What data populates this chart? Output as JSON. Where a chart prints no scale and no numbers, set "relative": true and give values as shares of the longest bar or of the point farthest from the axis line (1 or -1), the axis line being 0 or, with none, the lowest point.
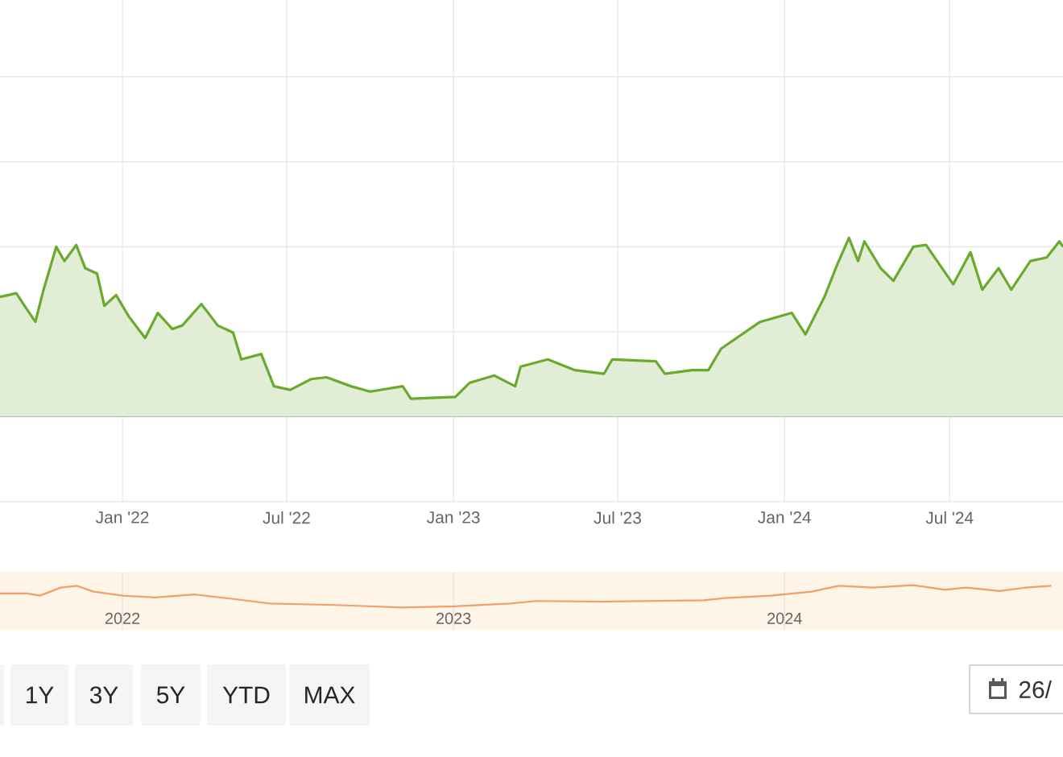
{
  "chart_data": [
    {
      "type": "area",
      "color": "#6aaa2e",
      "relative": true,
      "grid": true,
      "x": [
        "2021-08-19",
        "2021-09-06",
        "2021-09-15",
        "2021-09-27",
        "2021-10-06",
        "2021-10-20",
        "2021-10-29",
        "2021-11-11",
        "2021-11-21",
        "2021-12-04",
        "2021-12-12",
        "2021-12-25",
        "2022-01-08",
        "2022-01-26",
        "2022-02-09",
        "2022-02-25",
        "2022-03-08",
        "2022-03-29",
        "2022-04-16",
        "2022-05-03",
        "2022-05-12",
        "2022-06-03",
        "2022-06-17",
        "2022-07-05",
        "2022-07-28",
        "2022-08-14",
        "2022-09-10",
        "2022-10-01",
        "2022-11-06",
        "2022-11-15",
        "2023-01-03",
        "2023-01-19",
        "2023-02-15",
        "2023-03-10",
        "2023-03-16",
        "2023-04-15",
        "2023-05-15",
        "2023-06-16",
        "2023-06-25",
        "2023-08-12",
        "2023-08-22",
        "2023-09-21",
        "2023-10-09",
        "2023-10-23",
        "2023-12-05",
        "2024-01-09",
        "2024-01-24",
        "2024-02-14",
        "2024-02-28",
        "2024-03-12",
        "2024-03-22",
        "2024-03-29",
        "2024-04-16",
        "2024-04-30",
        "2024-05-22",
        "2024-06-05",
        "2024-07-05",
        "2024-07-24",
        "2024-08-06",
        "2024-08-24",
        "2024-09-07",
        "2024-09-28",
        "2024-10-16",
        "2024-10-30",
        "2024-11-03"
      ],
      "values": [
        0.67,
        0.69,
        0.62,
        0.53,
        0.71,
        0.95,
        0.87,
        0.96,
        0.83,
        0.8,
        0.62,
        0.68,
        0.56,
        0.44,
        0.58,
        0.49,
        0.51,
        0.63,
        0.51,
        0.47,
        0.32,
        0.35,
        0.17,
        0.15,
        0.21,
        0.22,
        0.17,
        0.14,
        0.17,
        0.1,
        0.11,
        0.19,
        0.23,
        0.17,
        0.28,
        0.32,
        0.26,
        0.24,
        0.32,
        0.31,
        0.24,
        0.26,
        0.26,
        0.38,
        0.53,
        0.58,
        0.46,
        0.67,
        0.85,
        1,
        0.87,
        0.98,
        0.83,
        0.76,
        0.95,
        0.96,
        0.74,
        0.92,
        0.71,
        0.83,
        0.71,
        0.87,
        0.89,
        0.98,
        0.95
      ],
      "xlim": [
        "2021-08-19",
        "2024-11-03"
      ],
      "xticks": [
        {
          "value": "2022-01-01",
          "label": "Jan '22"
        },
        {
          "value": "2022-07-01",
          "label": "Jul '22"
        },
        {
          "value": "2023-01-01",
          "label": "Jan '23"
        },
        {
          "value": "2023-07-01",
          "label": "Jul '23"
        },
        {
          "value": "2024-01-01",
          "label": "Jan '24"
        },
        {
          "value": "2024-07-01",
          "label": "Jul '24"
        }
      ]
    },
    {
      "type": "line",
      "color": "#f0a068",
      "relative": true,
      "grid": "x",
      "x": [
        "2021-08-19",
        "2021-09-18",
        "2021-10-02",
        "2021-10-25",
        "2021-11-12",
        "2021-11-30",
        "2022-01-01",
        "2022-02-06",
        "2022-03-22",
        "2022-05-05",
        "2022-06-12",
        "2022-08-23",
        "2022-11-06",
        "2023-01-03",
        "2023-03-05",
        "2023-04-02",
        "2023-06-16",
        "2023-10-04",
        "2023-10-27",
        "2023-12-17",
        "2024-01-31",
        "2024-03-01",
        "2024-04-07",
        "2024-05-22",
        "2024-06-26",
        "2024-07-19",
        "2024-08-25",
        "2024-09-23",
        "2024-10-21"
      ],
      "values": [
        0.63,
        0.63,
        0.53,
        0.89,
        0.97,
        0.71,
        0.53,
        0.45,
        0.58,
        0.37,
        0.18,
        0.11,
        0,
        0.05,
        0.18,
        0.29,
        0.26,
        0.32,
        0.42,
        0.53,
        0.71,
        0.97,
        0.89,
        1,
        0.79,
        0.89,
        0.74,
        0.89,
        0.97
      ],
      "xlim": [
        "2021-08-19",
        "2024-11-03"
      ],
      "xticks": [
        {
          "value": "2022-01-01",
          "label": "2022"
        },
        {
          "value": "2023-01-01",
          "label": "2023"
        },
        {
          "value": "2024-01-01",
          "label": "2024"
        }
      ]
    },
    {
      "type": "other",
      "annotations": [
        "1Y",
        "3Y",
        "5Y",
        "YTD",
        "MAX",
        "26/"
      ]
    }
  ]
}
